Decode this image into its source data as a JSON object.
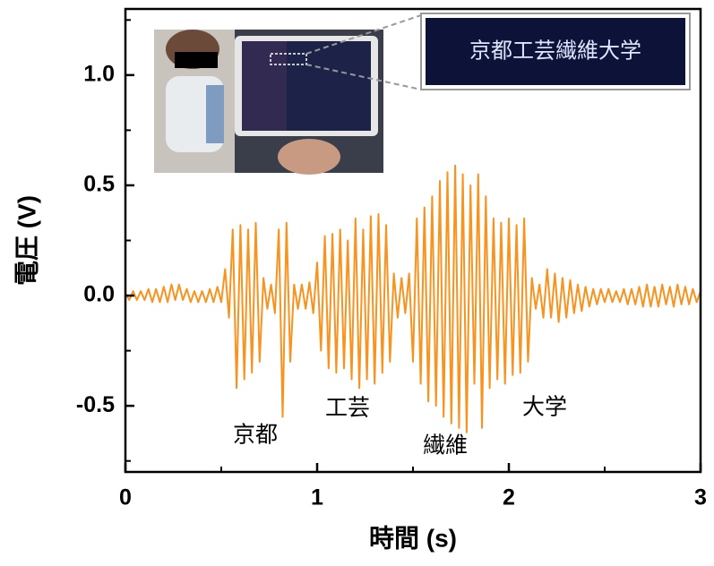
{
  "chart_data": {
    "type": "line",
    "xlabel": "時間 (s)",
    "ylabel": "電圧 (V)",
    "xlim": [
      0,
      3
    ],
    "xticks": [
      0,
      1,
      2,
      3
    ],
    "xminorticks": [
      0.5,
      1.5,
      2.5
    ],
    "ylim": [
      -0.8,
      1.3
    ],
    "yticks": [
      -0.5,
      {
        "value": 0,
        "label": "0.0"
      },
      0.5,
      {
        "value": 1,
        "label": "1.0"
      }
    ],
    "yminorticks": [
      -0.75,
      -0.25,
      0.25,
      0.75,
      1.25
    ],
    "annotations": [
      "京都",
      "工芸",
      "繊維",
      "大学"
    ],
    "inset_text": "京都工芸繊維大学",
    "x": [
      0,
      0.02,
      0.04,
      0.06,
      0.08,
      0.1,
      0.12,
      0.14,
      0.16,
      0.18,
      0.2,
      0.22,
      0.24,
      0.26,
      0.28,
      0.3,
      0.32,
      0.34,
      0.36,
      0.38,
      0.4,
      0.42,
      0.44,
      0.46,
      0.48,
      0.5,
      0.52,
      0.54,
      0.56,
      0.58,
      0.6,
      0.62,
      0.64,
      0.66,
      0.68,
      0.7,
      0.72,
      0.74,
      0.76,
      0.78,
      0.8,
      0.82,
      0.84,
      0.86,
      0.88,
      0.9,
      0.92,
      0.94,
      0.96,
      0.98,
      1,
      1.02,
      1.04,
      1.06,
      1.08,
      1.1,
      1.12,
      1.14,
      1.16,
      1.18,
      1.2,
      1.22,
      1.24,
      1.26,
      1.28,
      1.3,
      1.32,
      1.34,
      1.36,
      1.38,
      1.4,
      1.42,
      1.44,
      1.46,
      1.48,
      1.5,
      1.52,
      1.54,
      1.56,
      1.58,
      1.6,
      1.62,
      1.64,
      1.66,
      1.68,
      1.7,
      1.72,
      1.74,
      1.76,
      1.78,
      1.8,
      1.82,
      1.84,
      1.86,
      1.88,
      1.9,
      1.92,
      1.94,
      1.96,
      1.98,
      2,
      2.02,
      2.04,
      2.06,
      2.08,
      2.1,
      2.12,
      2.14,
      2.16,
      2.18,
      2.2,
      2.22,
      2.24,
      2.26,
      2.28,
      2.3,
      2.32,
      2.34,
      2.36,
      2.38,
      2.4,
      2.42,
      2.44,
      2.46,
      2.48,
      2.5,
      2.52,
      2.54,
      2.56,
      2.58,
      2.6,
      2.62,
      2.64,
      2.66,
      2.68,
      2.7,
      2.72,
      2.74,
      2.76,
      2.78,
      2.8,
      2.82,
      2.84,
      2.86,
      2.88,
      2.9,
      2.92,
      2.94,
      2.96,
      2.98,
      3
    ],
    "series": [
      {
        "color": "#f7931e",
        "values": [
          0.01,
          -0.02,
          0.02,
          -0.02,
          0.02,
          -0.02,
          0.03,
          -0.03,
          0.03,
          -0.03,
          0.04,
          -0.03,
          0.05,
          -0.02,
          0.05,
          -0.02,
          0.03,
          -0.03,
          0.02,
          -0.03,
          0.02,
          -0.03,
          0.03,
          -0.03,
          0.04,
          -0.03,
          0.12,
          -0.1,
          0.3,
          -0.42,
          0.32,
          -0.38,
          0.3,
          -0.35,
          0.33,
          -0.3,
          0.08,
          -0.06,
          0.05,
          -0.08,
          0.3,
          -0.55,
          0.33,
          -0.3,
          0.05,
          -0.06,
          0.05,
          -0.06,
          0.06,
          -0.08,
          0.15,
          -0.25,
          0.27,
          -0.33,
          0.28,
          -0.35,
          0.3,
          -0.33,
          0.25,
          -0.38,
          0.35,
          -0.42,
          0.3,
          -0.38,
          0.36,
          -0.4,
          0.37,
          -0.35,
          0.32,
          -0.3,
          0.1,
          -0.1,
          0.08,
          -0.08,
          0.1,
          -0.3,
          0.35,
          -0.4,
          0.4,
          -0.48,
          0.45,
          -0.5,
          0.52,
          -0.55,
          0.56,
          -0.58,
          0.59,
          -0.6,
          0.55,
          -0.62,
          0.5,
          -0.4,
          0.55,
          -0.6,
          0.45,
          -0.42,
          0.35,
          -0.38,
          0.33,
          -0.4,
          0.35,
          -0.36,
          0.32,
          -0.35,
          0.35,
          -0.3,
          0.08,
          -0.06,
          0.05,
          -0.1,
          0.12,
          -0.1,
          0.1,
          -0.12,
          0.08,
          -0.1,
          0.07,
          -0.08,
          0.05,
          -0.07,
          0.04,
          -0.05,
          0.03,
          -0.04,
          0.03,
          -0.03,
          0.03,
          -0.03,
          0.02,
          -0.03,
          0.03,
          -0.04,
          0.03,
          -0.04,
          0.04,
          -0.05,
          0.05,
          -0.05,
          0.04,
          -0.05,
          0.05,
          -0.04,
          0.04,
          -0.05,
          0.05,
          -0.04,
          0.04,
          -0.04,
          0.03,
          -0.03,
          0.02
        ]
      }
    ]
  }
}
